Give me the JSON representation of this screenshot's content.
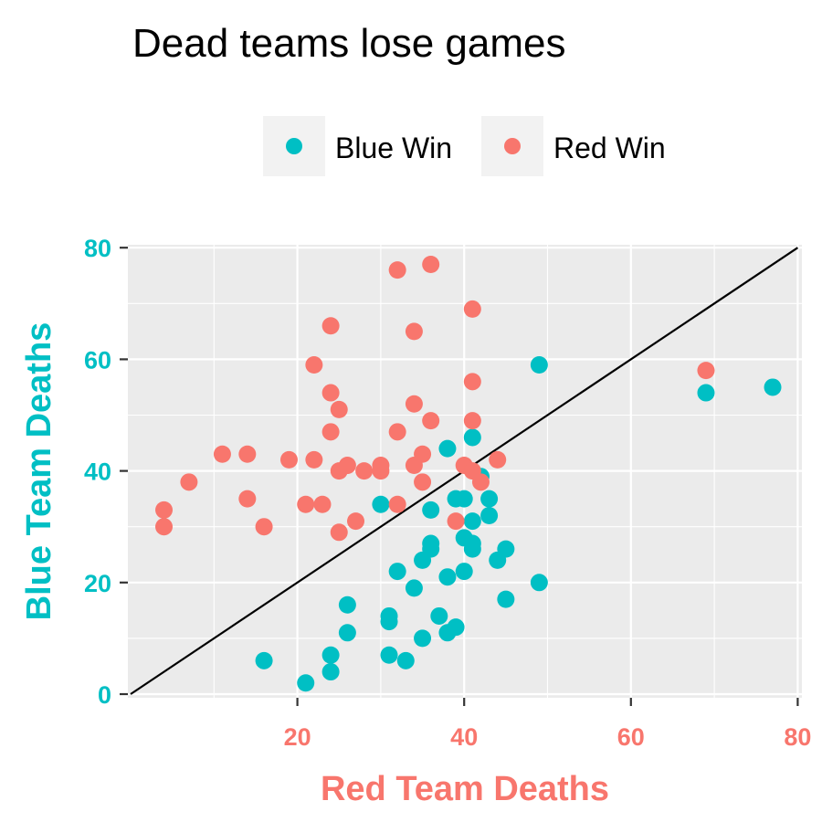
{
  "chart_data": {
    "type": "scatter",
    "title": "Dead teams lose games",
    "xlabel": "Red Team Deaths",
    "ylabel": "Blue Team Deaths",
    "xlim": [
      0,
      80
    ],
    "ylim": [
      0,
      80
    ],
    "x_ticks": [
      "20",
      "40",
      "60",
      "80"
    ],
    "y_ticks": [
      "0",
      "20",
      "40",
      "60",
      "80"
    ],
    "x_tick_values": [
      20,
      40,
      60,
      80
    ],
    "y_tick_values": [
      0,
      20,
      40,
      60,
      80
    ],
    "grid": true,
    "legend_position": "top",
    "reference_line": {
      "from": [
        0,
        0
      ],
      "to": [
        80,
        80
      ]
    },
    "colors": {
      "blue": "#00BFC4",
      "red": "#F8766D",
      "panel": "#EBEBEB",
      "grid": "#FFFFFF",
      "line": "#000000",
      "legend_key_bg": "#F2F2F2"
    },
    "series": [
      {
        "name": "Blue Win",
        "color": "#00BFC4",
        "points": [
          [
            16,
            6
          ],
          [
            21,
            2
          ],
          [
            24,
            7
          ],
          [
            24,
            4
          ],
          [
            26,
            16
          ],
          [
            26,
            11
          ],
          [
            30,
            34
          ],
          [
            31,
            14
          ],
          [
            31,
            13
          ],
          [
            31,
            7
          ],
          [
            32,
            22
          ],
          [
            33,
            6
          ],
          [
            34,
            19
          ],
          [
            35,
            24
          ],
          [
            35,
            10
          ],
          [
            36,
            33
          ],
          [
            36,
            27
          ],
          [
            36,
            26
          ],
          [
            37,
            14
          ],
          [
            38,
            44
          ],
          [
            38,
            21
          ],
          [
            38,
            11
          ],
          [
            39,
            35
          ],
          [
            39,
            12
          ],
          [
            40,
            35
          ],
          [
            40,
            28
          ],
          [
            40,
            22
          ],
          [
            41,
            46
          ],
          [
            41,
            31
          ],
          [
            41,
            27
          ],
          [
            41,
            26
          ],
          [
            42,
            39
          ],
          [
            43,
            35
          ],
          [
            43,
            32
          ],
          [
            44,
            24
          ],
          [
            45,
            26
          ],
          [
            45,
            17
          ],
          [
            49,
            59
          ],
          [
            49,
            20
          ],
          [
            69,
            54
          ],
          [
            77,
            55
          ]
        ]
      },
      {
        "name": "Red Win",
        "color": "#F8766D",
        "points": [
          [
            4,
            33
          ],
          [
            4,
            30
          ],
          [
            7,
            38
          ],
          [
            11,
            43
          ],
          [
            14,
            43
          ],
          [
            14,
            35
          ],
          [
            16,
            30
          ],
          [
            19,
            42
          ],
          [
            21,
            34
          ],
          [
            22,
            59
          ],
          [
            22,
            42
          ],
          [
            23,
            34
          ],
          [
            24,
            66
          ],
          [
            24,
            54
          ],
          [
            24,
            47
          ],
          [
            25,
            51
          ],
          [
            25,
            40
          ],
          [
            25,
            29
          ],
          [
            26,
            41
          ],
          [
            27,
            31
          ],
          [
            28,
            40
          ],
          [
            30,
            41
          ],
          [
            30,
            40
          ],
          [
            32,
            76
          ],
          [
            32,
            47
          ],
          [
            32,
            34
          ],
          [
            34,
            65
          ],
          [
            34,
            52
          ],
          [
            34,
            41
          ],
          [
            35,
            43
          ],
          [
            35,
            38
          ],
          [
            36,
            77
          ],
          [
            36,
            49
          ],
          [
            39,
            31
          ],
          [
            40,
            41
          ],
          [
            41,
            69
          ],
          [
            41,
            56
          ],
          [
            41,
            49
          ],
          [
            41,
            40
          ],
          [
            42,
            38
          ],
          [
            44,
            42
          ],
          [
            69,
            58
          ]
        ]
      }
    ]
  }
}
